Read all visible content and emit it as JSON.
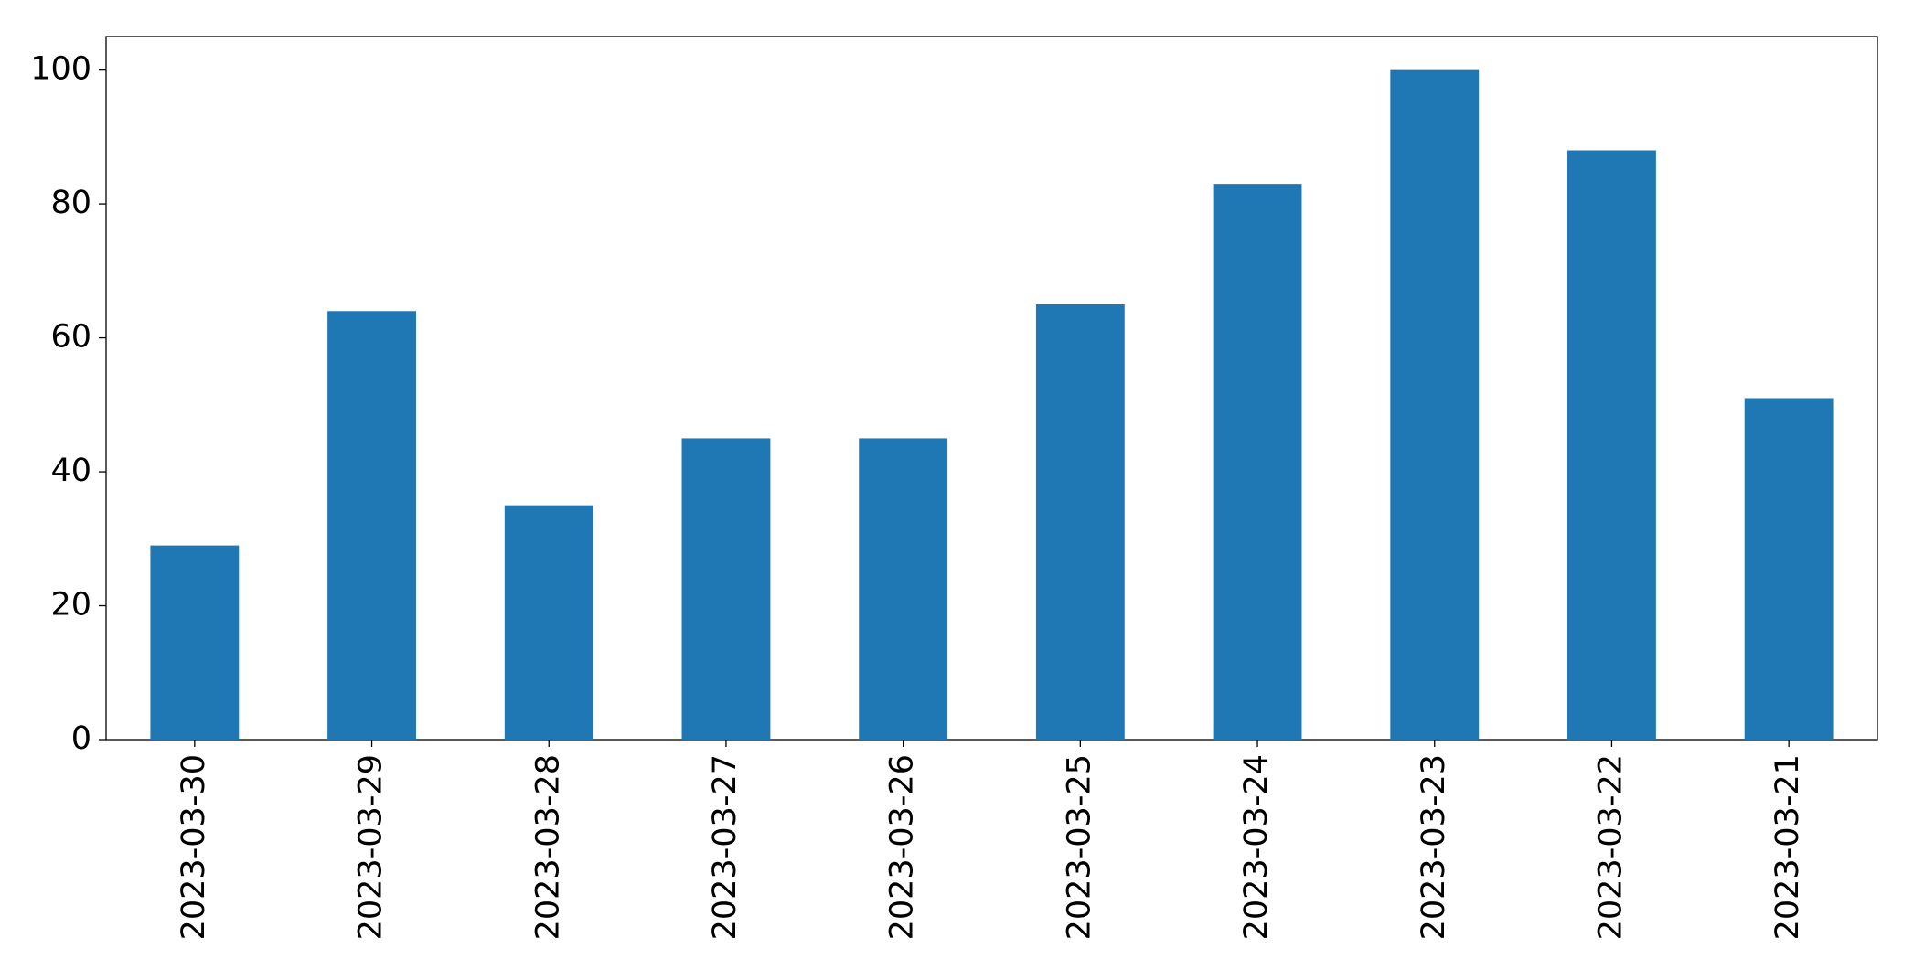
{
  "chart_data": {
    "type": "bar",
    "categories": [
      "2023-03-30",
      "2023-03-29",
      "2023-03-28",
      "2023-03-27",
      "2023-03-26",
      "2023-03-25",
      "2023-03-24",
      "2023-03-23",
      "2023-03-22",
      "2023-03-21"
    ],
    "values": [
      29,
      64,
      35,
      45,
      45,
      65,
      83,
      100,
      88,
      51
    ],
    "color": "#1f77b4",
    "ylim": [
      0,
      105
    ],
    "yticks": [
      0,
      20,
      40,
      60,
      80,
      100
    ],
    "grid": false
  }
}
